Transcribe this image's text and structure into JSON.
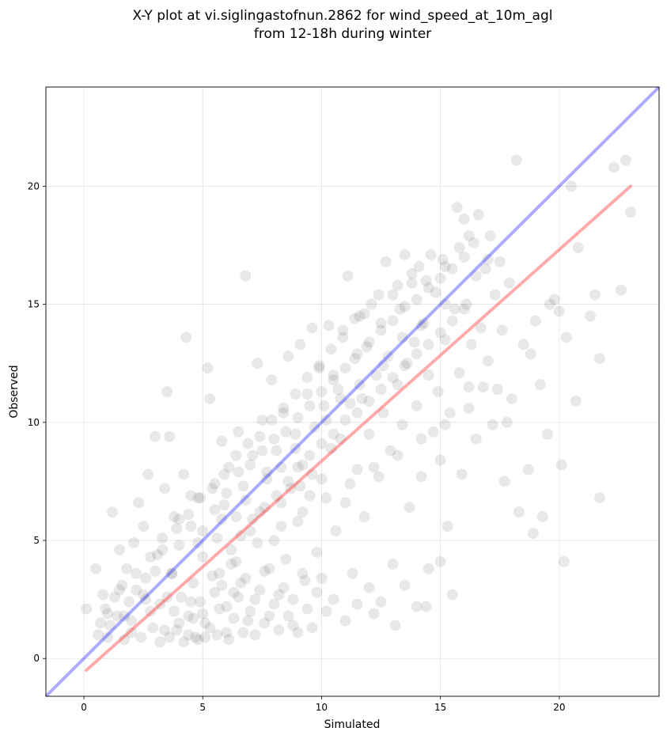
{
  "chart_data": {
    "type": "scatter",
    "title_lines": [
      "X-Y plot at vi.siglingastofnun.2862 for wind_speed_at_10m_agl",
      "from 12-18h during winter"
    ],
    "xlabel": "Simulated",
    "ylabel": "Observed",
    "xlim": [
      -1.6,
      24.2
    ],
    "ylim": [
      -1.6,
      24.2
    ],
    "xticks": [
      0,
      5,
      10,
      15,
      20
    ],
    "yticks": [
      0,
      5,
      10,
      15,
      20
    ],
    "grid": true,
    "point_color": "#000000",
    "identity_line": {
      "color": "#0000ff",
      "x": [
        -1.6,
        24.2
      ],
      "y": [
        -1.6,
        24.2
      ]
    },
    "fit_line": {
      "color": "#ff0000",
      "x": [
        0.1,
        23.0
      ],
      "y": [
        -0.5,
        20.0
      ]
    },
    "points": [
      [
        0.1,
        2.1
      ],
      [
        0.5,
        3.8
      ],
      [
        0.6,
        1.0
      ],
      [
        0.7,
        1.5
      ],
      [
        0.8,
        2.7
      ],
      [
        0.9,
        2.1
      ],
      [
        1.0,
        0.9
      ],
      [
        1.1,
        1.4
      ],
      [
        1.2,
        6.2
      ],
      [
        1.3,
        2.6
      ],
      [
        1.4,
        1.8
      ],
      [
        1.5,
        4.6
      ],
      [
        1.6,
        3.1
      ],
      [
        1.7,
        0.8
      ],
      [
        1.8,
        3.8
      ],
      [
        1.9,
        2.4
      ],
      [
        2.0,
        1.1
      ],
      [
        2.1,
        4.9
      ],
      [
        2.2,
        2.9
      ],
      [
        2.3,
        6.6
      ],
      [
        2.4,
        0.9
      ],
      [
        2.5,
        5.6
      ],
      [
        2.6,
        3.4
      ],
      [
        2.7,
        7.8
      ],
      [
        2.8,
        2.0
      ],
      [
        2.9,
        1.3
      ],
      [
        3.0,
        9.4
      ],
      [
        3.1,
        4.4
      ],
      [
        3.2,
        2.3
      ],
      [
        3.3,
        5.1
      ],
      [
        3.4,
        7.2
      ],
      [
        3.5,
        11.3
      ],
      [
        3.6,
        9.4
      ],
      [
        3.7,
        3.6
      ],
      [
        3.8,
        6.0
      ],
      [
        3.9,
        1.2
      ],
      [
        4.0,
        4.8
      ],
      [
        4.1,
        2.6
      ],
      [
        4.2,
        7.8
      ],
      [
        4.3,
        13.6
      ],
      [
        4.4,
        1.8
      ],
      [
        4.5,
        5.6
      ],
      [
        4.6,
        3.2
      ],
      [
        4.7,
        0.9
      ],
      [
        4.8,
        6.8
      ],
      [
        4.9,
        2.4
      ],
      [
        5.0,
        4.3
      ],
      [
        5.1,
        1.5
      ],
      [
        5.2,
        12.3
      ],
      [
        5.3,
        11.0
      ],
      [
        5.4,
        3.5
      ],
      [
        5.5,
        7.4
      ],
      [
        5.6,
        5.1
      ],
      [
        5.7,
        2.1
      ],
      [
        5.8,
        9.2
      ],
      [
        5.9,
        6.5
      ],
      [
        6.0,
        1.1
      ],
      [
        6.1,
        8.1
      ],
      [
        6.2,
        4.0
      ],
      [
        6.3,
        2.8
      ],
      [
        6.4,
        6.0
      ],
      [
        6.5,
        9.6
      ],
      [
        6.6,
        3.2
      ],
      [
        6.7,
        7.3
      ],
      [
        6.8,
        16.2
      ],
      [
        6.9,
        1.6
      ],
      [
        7.0,
        5.4
      ],
      [
        7.1,
        8.6
      ],
      [
        7.2,
        2.5
      ],
      [
        7.3,
        12.5
      ],
      [
        7.4,
        6.2
      ],
      [
        7.5,
        10.1
      ],
      [
        7.6,
        3.7
      ],
      [
        7.7,
        7.9
      ],
      [
        7.8,
        1.8
      ],
      [
        7.9,
        11.8
      ],
      [
        8.0,
        5.0
      ],
      [
        8.1,
        8.8
      ],
      [
        8.2,
        2.7
      ],
      [
        8.3,
        6.6
      ],
      [
        8.4,
        10.4
      ],
      [
        8.5,
        4.2
      ],
      [
        8.6,
        12.8
      ],
      [
        8.7,
        7.2
      ],
      [
        8.8,
        1.4
      ],
      [
        8.9,
        9.5
      ],
      [
        9.0,
        5.8
      ],
      [
        9.1,
        13.3
      ],
      [
        9.2,
        8.2
      ],
      [
        9.3,
        3.3
      ],
      [
        9.4,
        11.2
      ],
      [
        9.5,
        6.9
      ],
      [
        9.6,
        14.0
      ],
      [
        9.7,
        9.8
      ],
      [
        9.8,
        4.5
      ],
      [
        9.9,
        12.3
      ],
      [
        10.0,
        7.6
      ],
      [
        10.1,
        10.7
      ],
      [
        10.2,
        2.0
      ],
      [
        10.3,
        14.1
      ],
      [
        10.4,
        8.9
      ],
      [
        10.5,
        12.0
      ],
      [
        10.6,
        5.4
      ],
      [
        10.7,
        11.4
      ],
      [
        10.8,
        9.3
      ],
      [
        10.9,
        13.6
      ],
      [
        11.0,
        6.6
      ],
      [
        11.1,
        16.2
      ],
      [
        11.2,
        10.8
      ],
      [
        11.3,
        3.6
      ],
      [
        11.4,
        12.7
      ],
      [
        11.5,
        8.0
      ],
      [
        11.6,
        14.5
      ],
      [
        11.7,
        11.0
      ],
      [
        11.8,
        6.0
      ],
      [
        11.9,
        13.2
      ],
      [
        12.0,
        9.5
      ],
      [
        12.1,
        15.0
      ],
      [
        12.2,
        1.9
      ],
      [
        12.3,
        12.0
      ],
      [
        12.4,
        7.7
      ],
      [
        12.5,
        14.2
      ],
      [
        12.6,
        10.4
      ],
      [
        12.7,
        16.8
      ],
      [
        12.8,
        12.8
      ],
      [
        12.9,
        8.8
      ],
      [
        13.0,
        15.4
      ],
      [
        13.1,
        1.4
      ],
      [
        13.2,
        11.6
      ],
      [
        13.3,
        14.8
      ],
      [
        13.4,
        9.9
      ],
      [
        13.5,
        17.1
      ],
      [
        13.6,
        12.5
      ],
      [
        13.7,
        6.4
      ],
      [
        13.8,
        15.9
      ],
      [
        13.9,
        13.4
      ],
      [
        14.0,
        10.7
      ],
      [
        14.1,
        16.6
      ],
      [
        14.2,
        7.7
      ],
      [
        14.3,
        14.2
      ],
      [
        14.4,
        2.2
      ],
      [
        14.5,
        12.0
      ],
      [
        14.6,
        17.1
      ],
      [
        14.7,
        9.6
      ],
      [
        14.8,
        15.5
      ],
      [
        14.9,
        11.3
      ],
      [
        15.0,
        8.4
      ],
      [
        15.1,
        16.9
      ],
      [
        15.2,
        13.5
      ],
      [
        15.3,
        5.6
      ],
      [
        15.4,
        10.4
      ],
      [
        15.5,
        2.7
      ],
      [
        15.6,
        14.8
      ],
      [
        15.7,
        19.1
      ],
      [
        15.8,
        12.1
      ],
      [
        15.9,
        7.8
      ],
      [
        16.0,
        18.6
      ],
      [
        16.1,
        15.0
      ],
      [
        16.2,
        11.5
      ],
      [
        16.3,
        13.3
      ],
      [
        16.4,
        17.6
      ],
      [
        16.5,
        9.3
      ],
      [
        16.6,
        18.8
      ],
      [
        16.7,
        14.0
      ],
      [
        16.8,
        11.5
      ],
      [
        16.9,
        16.5
      ],
      [
        17.0,
        12.6
      ],
      [
        17.1,
        17.9
      ],
      [
        17.2,
        9.9
      ],
      [
        17.3,
        15.4
      ],
      [
        17.4,
        11.4
      ],
      [
        17.5,
        16.8
      ],
      [
        17.6,
        13.9
      ],
      [
        17.7,
        7.5
      ],
      [
        17.8,
        10.0
      ],
      [
        17.9,
        15.9
      ],
      [
        18.0,
        11.0
      ],
      [
        18.2,
        21.1
      ],
      [
        18.3,
        6.2
      ],
      [
        18.5,
        13.3
      ],
      [
        18.7,
        8.0
      ],
      [
        18.8,
        12.9
      ],
      [
        18.9,
        5.3
      ],
      [
        19.0,
        14.3
      ],
      [
        19.2,
        11.6
      ],
      [
        19.3,
        6.0
      ],
      [
        19.5,
        9.5
      ],
      [
        19.6,
        15.0
      ],
      [
        19.8,
        15.2
      ],
      [
        20.0,
        14.7
      ],
      [
        20.1,
        8.2
      ],
      [
        20.2,
        4.1
      ],
      [
        20.3,
        13.6
      ],
      [
        20.5,
        20.0
      ],
      [
        20.7,
        10.9
      ],
      [
        20.8,
        17.4
      ],
      [
        21.3,
        14.5
      ],
      [
        21.5,
        15.4
      ],
      [
        21.7,
        12.7
      ],
      [
        21.7,
        6.8
      ],
      [
        22.3,
        20.8
      ],
      [
        22.6,
        15.6
      ],
      [
        22.8,
        21.1
      ],
      [
        23.0,
        18.9
      ],
      [
        3.2,
        0.7
      ],
      [
        3.4,
        1.2
      ],
      [
        3.6,
        0.9
      ],
      [
        3.8,
        2.0
      ],
      [
        4.0,
        1.5
      ],
      [
        4.2,
        0.7
      ],
      [
        4.4,
        1.0
      ],
      [
        4.5,
        2.4
      ],
      [
        4.6,
        1.7
      ],
      [
        4.8,
        0.8
      ],
      [
        5.0,
        1.9
      ],
      [
        5.1,
        0.9
      ],
      [
        5.3,
        1.3
      ],
      [
        5.5,
        2.8
      ],
      [
        5.6,
        1.0
      ],
      [
        5.8,
        3.1
      ],
      [
        6.0,
        2.2
      ],
      [
        6.1,
        0.8
      ],
      [
        6.3,
        1.7
      ],
      [
        6.5,
        2.6
      ],
      [
        6.7,
        1.1
      ],
      [
        6.8,
        3.4
      ],
      [
        7.0,
        2.0
      ],
      [
        7.2,
        1.0
      ],
      [
        7.4,
        2.9
      ],
      [
        7.6,
        1.5
      ],
      [
        7.8,
        3.8
      ],
      [
        8.0,
        2.3
      ],
      [
        8.2,
        1.2
      ],
      [
        8.4,
        3.0
      ],
      [
        8.6,
        1.8
      ],
      [
        8.8,
        2.5
      ],
      [
        9.0,
        1.1
      ],
      [
        9.2,
        3.6
      ],
      [
        9.4,
        2.1
      ],
      [
        9.6,
        1.3
      ],
      [
        9.8,
        2.8
      ],
      [
        10.0,
        3.4
      ],
      [
        10.5,
        2.5
      ],
      [
        11.0,
        1.6
      ],
      [
        11.5,
        2.3
      ],
      [
        12.0,
        3.0
      ],
      [
        12.5,
        2.4
      ],
      [
        13.0,
        4.0
      ],
      [
        13.5,
        3.1
      ],
      [
        14.0,
        2.2
      ],
      [
        14.5,
        3.8
      ],
      [
        15.0,
        4.1
      ],
      [
        1.0,
        1.9
      ],
      [
        1.5,
        2.9
      ],
      [
        2.0,
        1.6
      ],
      [
        2.5,
        2.7
      ],
      [
        3.0,
        3.7
      ],
      [
        3.5,
        2.6
      ],
      [
        4.0,
        5.9
      ],
      [
        4.5,
        6.9
      ],
      [
        5.0,
        5.4
      ],
      [
        5.5,
        6.3
      ],
      [
        6.0,
        7.0
      ],
      [
        6.5,
        7.9
      ],
      [
        7.0,
        8.2
      ],
      [
        7.5,
        8.8
      ],
      [
        8.0,
        9.3
      ],
      [
        8.5,
        9.6
      ],
      [
        9.0,
        10.2
      ],
      [
        9.5,
        10.7
      ],
      [
        10.0,
        11.3
      ],
      [
        10.5,
        11.8
      ],
      [
        11.0,
        12.3
      ],
      [
        11.5,
        12.9
      ],
      [
        12.0,
        13.4
      ],
      [
        12.5,
        13.9
      ],
      [
        13.0,
        14.3
      ],
      [
        13.5,
        14.9
      ],
      [
        14.0,
        15.2
      ],
      [
        14.5,
        15.7
      ],
      [
        15.0,
        16.1
      ],
      [
        15.5,
        16.5
      ],
      [
        16.0,
        17.0
      ],
      [
        16.5,
        16.2
      ],
      [
        17.0,
        16.9
      ],
      [
        9.0,
        8.1
      ],
      [
        9.5,
        8.6
      ],
      [
        10.0,
        9.1
      ],
      [
        10.5,
        9.5
      ],
      [
        11.0,
        10.1
      ],
      [
        11.5,
        10.4
      ],
      [
        12.0,
        10.9
      ],
      [
        12.5,
        11.4
      ],
      [
        13.0,
        11.9
      ],
      [
        13.5,
        12.4
      ],
      [
        14.0,
        12.9
      ],
      [
        14.5,
        13.3
      ],
      [
        15.0,
        13.8
      ],
      [
        15.5,
        14.3
      ],
      [
        16.0,
        14.8
      ],
      [
        11.8,
        14.6
      ],
      [
        12.4,
        15.4
      ],
      [
        13.2,
        15.8
      ],
      [
        13.8,
        16.3
      ],
      [
        14.4,
        16.0
      ],
      [
        15.2,
        16.6
      ],
      [
        16.2,
        17.9
      ],
      [
        15.8,
        17.4
      ],
      [
        6.2,
        4.6
      ],
      [
        6.6,
        5.2
      ],
      [
        7.1,
        5.9
      ],
      [
        7.6,
        6.4
      ],
      [
        8.1,
        6.9
      ],
      [
        8.6,
        7.5
      ],
      [
        9.1,
        7.3
      ],
      [
        9.6,
        7.8
      ],
      [
        5.7,
        3.6
      ],
      [
        6.4,
        4.1
      ],
      [
        7.3,
        4.9
      ],
      [
        8.3,
        5.6
      ],
      [
        9.2,
        6.2
      ],
      [
        10.2,
        6.8
      ],
      [
        11.2,
        7.4
      ],
      [
        12.2,
        8.1
      ],
      [
        13.2,
        8.6
      ],
      [
        14.2,
        9.3
      ],
      [
        15.2,
        9.9
      ],
      [
        16.2,
        10.6
      ],
      [
        2.2,
        3.6
      ],
      [
        2.8,
        4.3
      ],
      [
        3.3,
        4.6
      ],
      [
        3.9,
        5.5
      ],
      [
        4.4,
        6.1
      ],
      [
        4.9,
        6.8
      ],
      [
        5.4,
        7.2
      ],
      [
        5.9,
        7.8
      ],
      [
        6.4,
        8.6
      ],
      [
        6.9,
        9.1
      ],
      [
        7.4,
        9.4
      ],
      [
        7.9,
        10.1
      ],
      [
        8.4,
        10.6
      ],
      [
        8.9,
        11.2
      ],
      [
        9.4,
        11.9
      ],
      [
        9.9,
        12.4
      ],
      [
        10.4,
        13.1
      ],
      [
        10.9,
        13.9
      ],
      [
        11.4,
        14.4
      ],
      [
        10.2,
        10.1
      ],
      [
        10.8,
        11.0
      ],
      [
        11.6,
        11.6
      ],
      [
        12.6,
        12.4
      ],
      [
        13.4,
        13.6
      ],
      [
        14.2,
        14.1
      ],
      [
        15.2,
        15.0
      ],
      [
        7.7,
        7.6
      ],
      [
        8.3,
        8.1
      ],
      [
        8.9,
        8.9
      ],
      [
        6.8,
        6.7
      ],
      [
        5.8,
        5.9
      ],
      [
        4.8,
        4.9
      ],
      [
        3.7,
        3.6
      ],
      [
        2.6,
        2.5
      ],
      [
        1.7,
        1.8
      ]
    ]
  }
}
